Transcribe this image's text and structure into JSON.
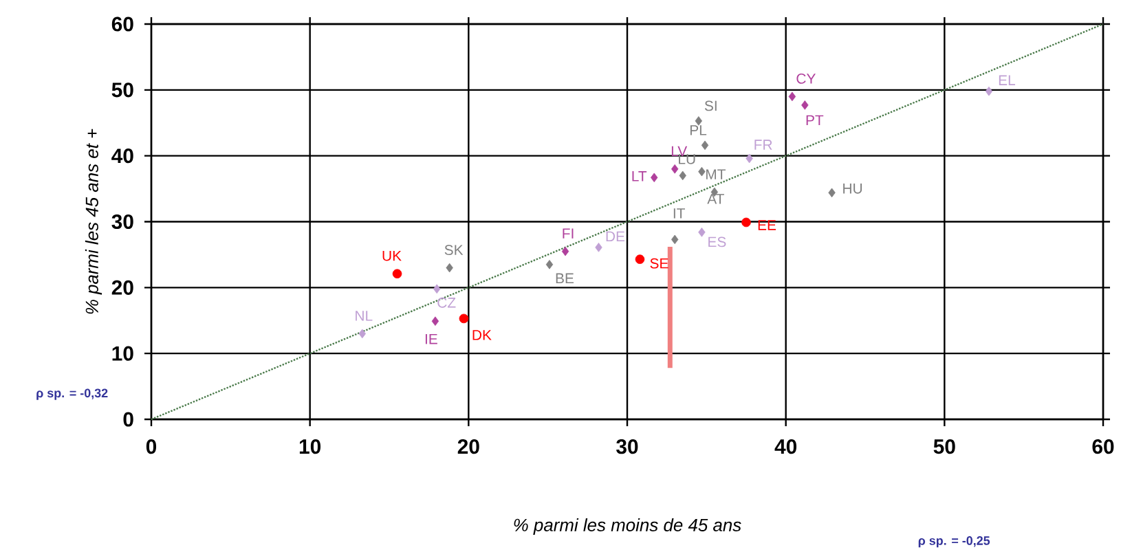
{
  "chart_data": {
    "type": "scatter",
    "xlabel": "% parmi les moins de 45 ans",
    "ylabel": "% parmi les 45 ans et +",
    "xlim": [
      0,
      60
    ],
    "ylim": [
      0,
      60
    ],
    "xticks": [
      0,
      10,
      20,
      30,
      40,
      50,
      60
    ],
    "yticks": [
      0,
      10,
      20,
      30,
      40,
      50,
      60
    ],
    "grid": true,
    "series": [
      {
        "color": "#ff0000",
        "marker": "circle",
        "x": [
          15.5,
          19.7,
          30.8,
          37.5
        ],
        "values": [
          22.1,
          15.3,
          24.3,
          29.9
        ]
      },
      {
        "color": "#b0409c",
        "marker": "diamond",
        "x": [
          17.9,
          26.1,
          31.7,
          33.0,
          40.4,
          41.2
        ],
        "values": [
          14.9,
          25.5,
          36.7,
          38.0,
          49.0,
          47.7
        ]
      },
      {
        "color": "#c0a0d4",
        "marker": "diamond",
        "x": [
          13.3,
          18.0,
          28.2,
          34.7,
          37.7,
          52.8
        ],
        "values": [
          13.0,
          19.8,
          26.1,
          28.4,
          39.6,
          49.8
        ]
      },
      {
        "color": "#808080",
        "marker": "diamond",
        "x": [
          18.8,
          25.1,
          33.0,
          33.5,
          34.7,
          35.5,
          34.9,
          34.5,
          42.9
        ],
        "values": [
          23.0,
          23.5,
          27.3,
          37.0,
          37.6,
          34.5,
          41.6,
          45.3,
          34.4
        ]
      },
      {
        "type": "line",
        "color": "#4a7a4a",
        "line_style": "dotted",
        "marker": "none",
        "x": [
          0,
          60
        ],
        "values": [
          0,
          60
        ]
      },
      {
        "type": "line",
        "color": "#f08080",
        "line_style": "solid",
        "marker": "none",
        "x": [
          32.7,
          32.7
        ],
        "values": [
          7.8,
          26.2
        ]
      }
    ],
    "annotations": [
      "ρ sp. = -0,32",
      "ρ sp. = -0,25",
      {
        "text": "UK",
        "x": 15.5,
        "y": 22.1
      },
      {
        "text": "DK",
        "x": 19.7,
        "y": 15.3
      },
      {
        "text": "SE",
        "x": 30.8,
        "y": 24.3
      },
      {
        "text": "EE",
        "x": 37.5,
        "y": 29.9
      },
      {
        "text": "IE",
        "x": 17.9,
        "y": 14.9
      },
      {
        "text": "FI",
        "x": 26.1,
        "y": 25.5
      },
      {
        "text": "LT",
        "x": 31.7,
        "y": 36.7
      },
      {
        "text": "LV",
        "x": 33.0,
        "y": 38.0
      },
      {
        "text": "CY",
        "x": 40.4,
        "y": 49.0
      },
      {
        "text": "PT",
        "x": 41.2,
        "y": 47.7
      },
      {
        "text": "NL",
        "x": 13.3,
        "y": 13.0
      },
      {
        "text": "CZ",
        "x": 18.0,
        "y": 19.8
      },
      {
        "text": "DE",
        "x": 28.2,
        "y": 26.1
      },
      {
        "text": "ES",
        "x": 34.7,
        "y": 28.4
      },
      {
        "text": "FR",
        "x": 37.7,
        "y": 39.6
      },
      {
        "text": "EL",
        "x": 52.8,
        "y": 49.8
      },
      {
        "text": "SK",
        "x": 18.8,
        "y": 23.0
      },
      {
        "text": "BE",
        "x": 25.1,
        "y": 23.5
      },
      {
        "text": "IT",
        "x": 33.0,
        "y": 27.3
      },
      {
        "text": "LU",
        "x": 33.5,
        "y": 37.0
      },
      {
        "text": "MT",
        "x": 34.7,
        "y": 37.6
      },
      {
        "text": "AT",
        "x": 35.5,
        "y": 34.5
      },
      {
        "text": "PL",
        "x": 34.9,
        "y": 41.6
      },
      {
        "text": "SI",
        "x": 34.5,
        "y": 45.3
      },
      {
        "text": "HU",
        "x": 42.9,
        "y": 34.4
      }
    ]
  }
}
